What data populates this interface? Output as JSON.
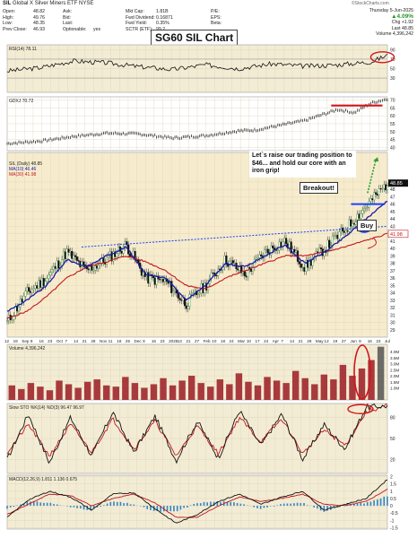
{
  "header": {
    "symbol": "SIL",
    "name": "Global X Silver Miners ETF",
    "exchange": "NYSE",
    "brand": "©StockCharts.com",
    "stats_left": [
      {
        "k": "Open:",
        "v": "48.82"
      },
      {
        "k": "High:",
        "v": "49.76"
      },
      {
        "k": "Low:",
        "v": "48.35"
      },
      {
        "k": "Prev Close:",
        "v": "46.93"
      }
    ],
    "stats_mid1": [
      {
        "k": "Ask:",
        "v": ""
      },
      {
        "k": "Bid:",
        "v": ""
      },
      {
        "k": "Last:",
        "v": ""
      },
      {
        "k": "Optionable:",
        "v": "yes"
      }
    ],
    "stats_mid2": [
      {
        "k": "Mkt Cap:",
        "v": "1.81B"
      },
      {
        "k": "Fwd Dividend:",
        "v": "0.16871"
      },
      {
        "k": "Fwd Yield:",
        "v": "0.35%"
      },
      {
        "k": "SCTR (ETF):",
        "v": "99.2"
      }
    ],
    "stats_mid3": [
      {
        "k": "P/E:",
        "v": ""
      },
      {
        "k": "EPS:",
        "v": ""
      },
      {
        "k": "Beta:",
        "v": ""
      },
      {
        "k": "",
        "v": ""
      }
    ],
    "date": "Thursday 5-Jun-2025",
    "change_pct": "▲4.09%",
    "chg_label": "Chg",
    "chg": "+1.92",
    "last_label": "Last",
    "last": "48.85",
    "volume_label": "Volume",
    "volume": "4,396,242",
    "chart_title": "SG60 SIL Chart"
  },
  "annotations": {
    "note": "Let`s raise our trading position to $46... and hold our core with an iron grip!",
    "breakout": "Breakout!",
    "buy": "Buy"
  },
  "colors": {
    "price_bg": "#f6eccd",
    "panel_bg": "#f3ecd4",
    "ma_blue": "#1a1aa8",
    "ma_red": "#c4141c",
    "annot_red": "#d3141c",
    "annot_blue": "#1a43ff",
    "annot_green": "#27a030",
    "up_candle": "#2e9a2e",
    "down_candle": "#111111"
  },
  "chart_data": [
    {
      "type": "line",
      "title": "RSI(14) 78.11",
      "ylim": [
        0,
        100
      ],
      "yticks": [
        30,
        50,
        70,
        90
      ],
      "x": [
        0,
        20,
        40,
        60,
        80,
        100,
        120,
        140,
        160,
        180,
        200,
        220,
        230
      ],
      "values": [
        45,
        52,
        66,
        62,
        54,
        48,
        58,
        50,
        60,
        55,
        58,
        64,
        78.11
      ]
    },
    {
      "type": "line",
      "title": "GDXJ 70.72",
      "ylim": [
        38,
        72
      ],
      "yticks": [
        40,
        45,
        50,
        55,
        60,
        65,
        70
      ],
      "x": [
        0,
        20,
        40,
        60,
        80,
        100,
        120,
        140,
        150,
        160,
        180,
        200,
        210,
        220,
        230
      ],
      "values": [
        42.5,
        44,
        47,
        49,
        48.5,
        46,
        47.5,
        50.5,
        51,
        53,
        57,
        64,
        62,
        68,
        70.72
      ]
    },
    {
      "type": "line",
      "title": "SIL (Daily) 48.85",
      "series": [
        {
          "name": "MA(10) 46.46",
          "values": [
            31.5,
            33,
            35,
            38.5,
            37.5,
            39,
            40.2,
            36.5,
            36,
            33,
            35,
            38,
            37.5,
            39,
            40.5,
            38,
            39.5,
            41.5,
            46.46
          ]
        },
        {
          "name": "MA(30) 41.98",
          "values": [
            30.5,
            31.5,
            33.5,
            36,
            37.5,
            38.2,
            39,
            38.2,
            37,
            35,
            34.5,
            36,
            37,
            38,
            39,
            39,
            39.5,
            40.2,
            41.98
          ]
        },
        {
          "name": "Close",
          "values": [
            30,
            34,
            36,
            39.5,
            37,
            38.5,
            40.5,
            36,
            35.5,
            32.5,
            35,
            38.5,
            36.5,
            39.5,
            41,
            37.5,
            40,
            42.5,
            48.85
          ]
        }
      ],
      "x": [
        0,
        12,
        24,
        36,
        48,
        60,
        72,
        84,
        96,
        108,
        120,
        132,
        144,
        156,
        168,
        180,
        192,
        204,
        230
      ],
      "ylim": [
        28,
        53
      ],
      "yticks": [
        29,
        30,
        31,
        32,
        33,
        34,
        35,
        36,
        37,
        38,
        39,
        40,
        41,
        42,
        43,
        44,
        45,
        46,
        47,
        48,
        49
      ],
      "price_labels": [
        "48.85",
        "41.98"
      ]
    },
    {
      "type": "bar",
      "title": "Volume 4,396,242",
      "yticks": [
        "1.0M",
        "1.5M",
        "2.0M",
        "2.5M",
        "3.0M",
        "3.5M",
        "4.0M"
      ],
      "ylim": [
        0,
        4.6
      ],
      "values_millions": [
        1.2,
        0.9,
        1.4,
        1.1,
        0.8,
        1.6,
        1.3,
        1.0,
        1.5,
        1.7,
        1.2,
        1.1,
        1.9,
        1.4,
        1.0,
        1.3,
        1.8,
        1.2,
        1.6,
        2.0,
        1.4,
        1.1,
        1.7,
        1.3,
        2.2,
        1.5,
        1.2,
        1.9,
        1.6,
        1.4,
        2.4,
        1.8,
        1.3,
        2.1,
        1.7,
        2.9,
        2.0,
        2.6,
        3.3,
        4.4
      ]
    },
    {
      "type": "line",
      "title": "Slow STO %K(14) %D(3) 96.47 96.97",
      "ylim": [
        0,
        100
      ],
      "yticks": [
        20,
        50,
        80
      ],
      "series": [
        {
          "name": "%K(14)",
          "values": [
            20,
            85,
            15,
            80,
            25,
            88,
            30,
            82,
            18,
            75,
            22,
            90,
            40,
            85,
            20,
            70,
            35,
            95,
            96.47
          ]
        },
        {
          "name": "%D(3)",
          "values": [
            30,
            70,
            25,
            70,
            30,
            78,
            35,
            75,
            25,
            68,
            28,
            80,
            45,
            78,
            28,
            62,
            40,
            88,
            96.97
          ]
        }
      ]
    },
    {
      "type": "line",
      "title": "MACD(12,26,9) 1.811 1.136 0.675",
      "ylim": [
        -1.6,
        2.1
      ],
      "yticks": [
        -1.5,
        -1.0,
        -0.5,
        0.0,
        0.5,
        1.0,
        1.5,
        2.0
      ],
      "series": [
        {
          "name": "MACD(12,26,9)",
          "values": [
            -0.8,
            0.4,
            1.0,
            0.6,
            -0.3,
            0.8,
            0.9,
            -0.2,
            -1.2,
            -0.6,
            0.3,
            0.8,
            0.1,
            0.6,
            1.0,
            -0.3,
            0.1,
            0.5,
            1.811
          ]
        },
        {
          "name": "Signal",
          "values": [
            -0.6,
            0.1,
            0.8,
            0.7,
            0.0,
            0.5,
            0.8,
            0.2,
            -0.8,
            -0.8,
            0.0,
            0.6,
            0.3,
            0.5,
            0.8,
            0.1,
            0.0,
            0.3,
            1.136
          ]
        },
        {
          "name": "Histogram",
          "values": [
            -0.2,
            0.3,
            0.2,
            -0.1,
            -0.3,
            0.3,
            0.1,
            -0.4,
            -0.4,
            0.2,
            0.3,
            0.2,
            -0.2,
            0.1,
            0.2,
            -0.4,
            0.1,
            0.2,
            0.675
          ]
        }
      ]
    }
  ],
  "x_axis": [
    "12",
    "19",
    "Sep",
    "9",
    "16",
    "23",
    "Oct",
    "7",
    "14",
    "21",
    "28",
    "Nov",
    "11",
    "18",
    "25",
    "Dec",
    "9",
    "16",
    "23",
    "2025",
    "13",
    "21",
    "27",
    "Feb",
    "10",
    "18",
    "24",
    "Mar",
    "10",
    "17",
    "24",
    "Apr",
    "7",
    "14",
    "21",
    "28",
    "May",
    "12",
    "19",
    "27",
    "Jun",
    "9",
    "16",
    "23",
    "Jul"
  ]
}
